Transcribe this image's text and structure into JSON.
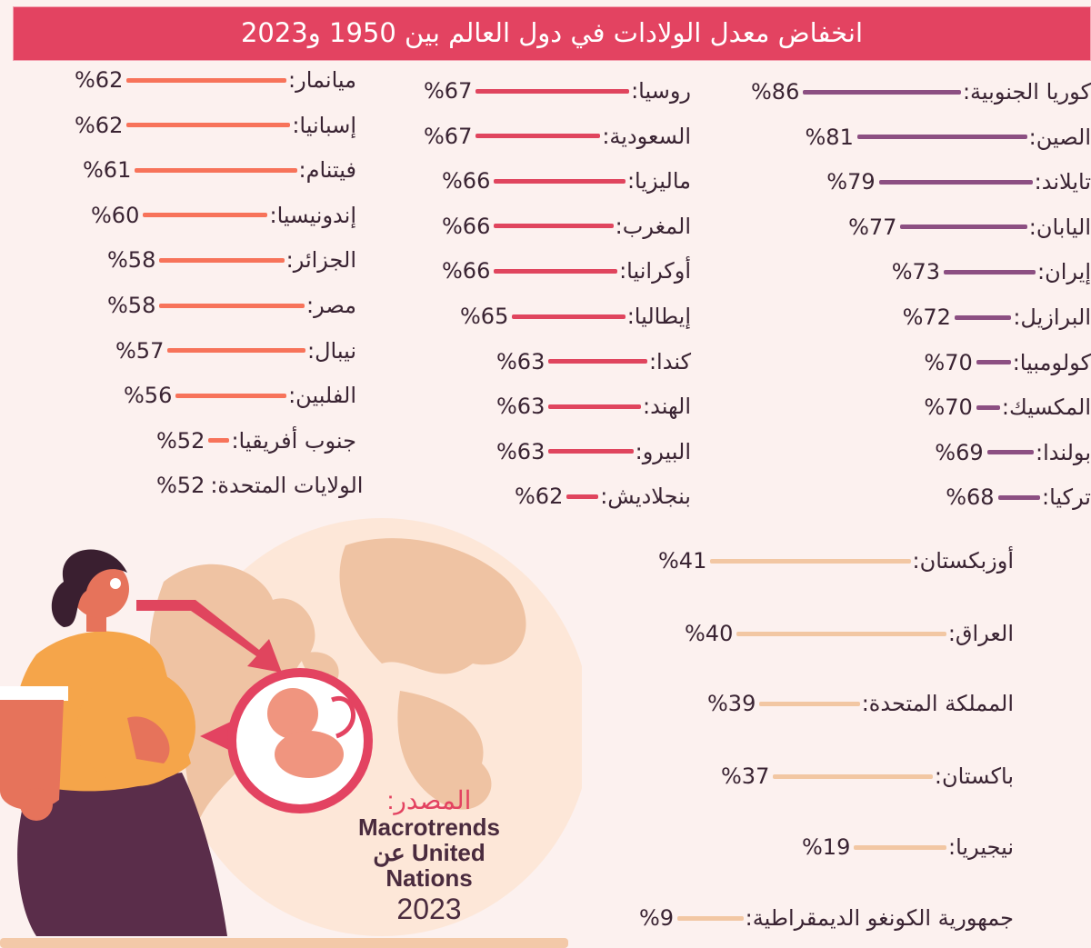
{
  "title": "انخفاض معدل الولادات في دول العالم بين 1950 و2023",
  "source": {
    "label": "المصدر:",
    "line1": "Macrotrends",
    "line2": "عن United",
    "line3": "Nations",
    "year": "2023"
  },
  "colors": {
    "purple": "#8c4f82",
    "red": "#e0455e",
    "coral": "#f7735a",
    "beige": "#f2c7a3",
    "header": "#e34361",
    "background": "#fcf1ef"
  },
  "chart_data": {
    "type": "bar",
    "title": "انخفاض معدل الولادات في دول العالم بين 1950 و2023",
    "unit": "%",
    "groups": [
      {
        "name": "column-1",
        "color": "#8c4f82",
        "items": [
          {
            "label": "كوريا الجنوبية:",
            "value": 86,
            "pct": "%86"
          },
          {
            "label": "الصين:",
            "value": 81,
            "pct": "%81"
          },
          {
            "label": "تايلاند:",
            "value": 79,
            "pct": "%79"
          },
          {
            "label": "اليابان:",
            "value": 77,
            "pct": "%77"
          },
          {
            "label": "إيران:",
            "value": 73,
            "pct": "%73"
          },
          {
            "label": "البرازيل:",
            "value": 72,
            "pct": "%72"
          },
          {
            "label": "كولومبيا:",
            "value": 70,
            "pct": "%70"
          },
          {
            "label": "المكسيك:",
            "value": 70,
            "pct": "%70"
          },
          {
            "label": "بولندا:",
            "value": 69,
            "pct": "%69"
          },
          {
            "label": "تركيا:",
            "value": 68,
            "pct": "%68"
          }
        ]
      },
      {
        "name": "column-2",
        "color": "#e0455e",
        "items": [
          {
            "label": "روسيا:",
            "value": 67,
            "pct": "%67"
          },
          {
            "label": "السعودية:",
            "value": 67,
            "pct": "%67"
          },
          {
            "label": "ماليزيا:",
            "value": 66,
            "pct": "%66"
          },
          {
            "label": "المغرب:",
            "value": 66,
            "pct": "%66"
          },
          {
            "label": "أوكرانيا:",
            "value": 66,
            "pct": "%66"
          },
          {
            "label": "إيطاليا:",
            "value": 65,
            "pct": "%65"
          },
          {
            "label": "كندا:",
            "value": 63,
            "pct": "%63"
          },
          {
            "label": "الهند:",
            "value": 63,
            "pct": "%63"
          },
          {
            "label": "البيرو:",
            "value": 63,
            "pct": "%63"
          },
          {
            "label": "بنجلاديش:",
            "value": 62,
            "pct": "%62"
          }
        ]
      },
      {
        "name": "column-3",
        "color": "#f7735a",
        "items": [
          {
            "label": "ميانمار:",
            "value": 62,
            "pct": "%62"
          },
          {
            "label": "إسبانيا:",
            "value": 62,
            "pct": "%62"
          },
          {
            "label": "فيتنام:",
            "value": 61,
            "pct": "%61"
          },
          {
            "label": "إندونيسيا:",
            "value": 60,
            "pct": "%60"
          },
          {
            "label": "الجزائر:",
            "value": 58,
            "pct": "%58"
          },
          {
            "label": "مصر:",
            "value": 58,
            "pct": "%58"
          },
          {
            "label": "نيبال:",
            "value": 57,
            "pct": "%57"
          },
          {
            "label": "الفلبين:",
            "value": 56,
            "pct": "%56"
          },
          {
            "label": "جنوب أفريقيا:",
            "value": 52,
            "pct": "%52"
          },
          {
            "label": "الولايات المتحدة:",
            "value": 52,
            "pct": "%52"
          }
        ]
      },
      {
        "name": "bottom",
        "color": "#f2c7a3",
        "items": [
          {
            "label": "أوزبكستان:",
            "value": 41,
            "pct": "%41"
          },
          {
            "label": "العراق:",
            "value": 40,
            "pct": "%40"
          },
          {
            "label": "المملكة المتحدة:",
            "value": 39,
            "pct": "%39"
          },
          {
            "label": "باكستان:",
            "value": 37,
            "pct": "%37"
          },
          {
            "label": "نيجيريا:",
            "value": 19,
            "pct": "%19"
          },
          {
            "label": "جمهورية الكونغو الديمقراطية:",
            "value": 9,
            "pct": "%9"
          }
        ]
      }
    ]
  }
}
